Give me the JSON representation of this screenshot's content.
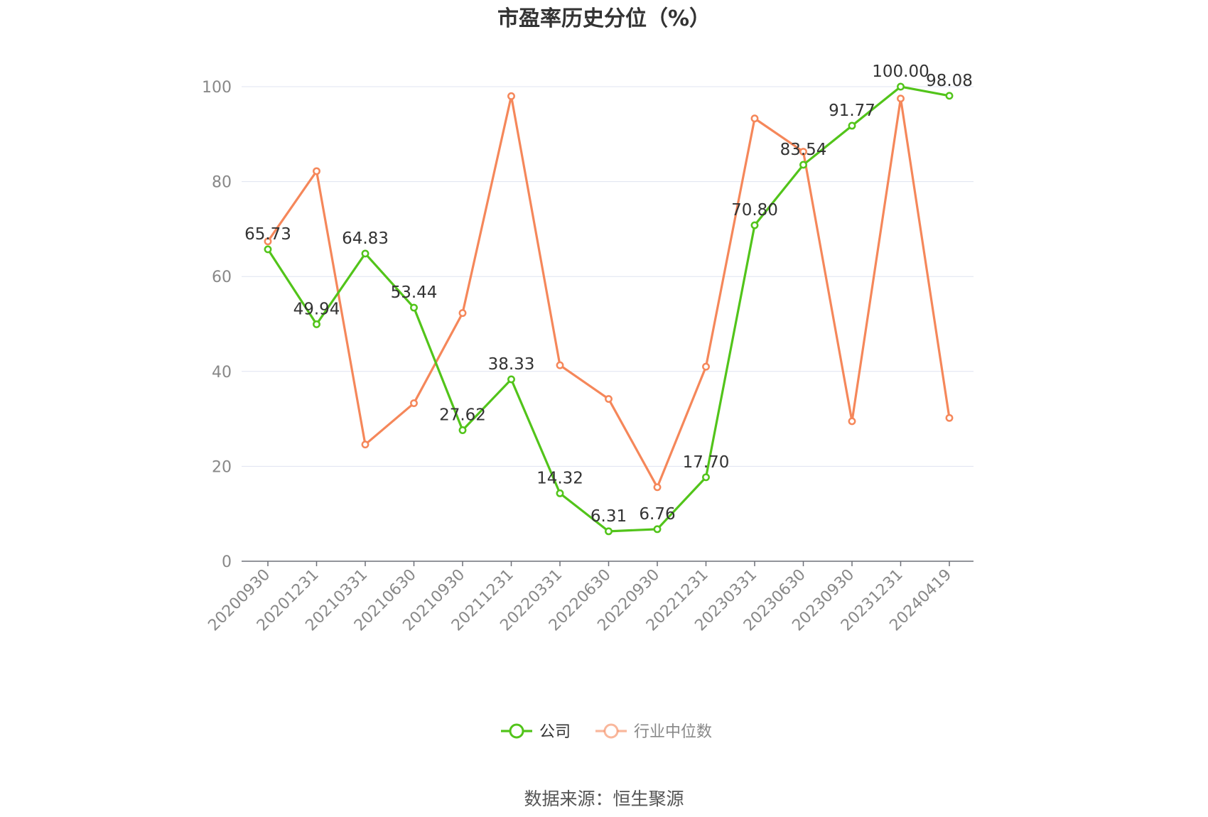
{
  "chart_data": {
    "type": "line",
    "title": "市盈率历史分位（%）",
    "categories": [
      "20200930",
      "20201231",
      "20210331",
      "20210630",
      "20210930",
      "20211231",
      "20220331",
      "20220630",
      "20220930",
      "20221231",
      "20230331",
      "20230630",
      "20230930",
      "20231231",
      "20240419"
    ],
    "ylim": [
      0,
      100
    ],
    "yticks": [
      0,
      20,
      40,
      60,
      80,
      100
    ],
    "grid": true,
    "legend_position": "bottom",
    "series": [
      {
        "name": "公司",
        "color": "#52c41a",
        "values": [
          65.73,
          49.94,
          64.83,
          53.44,
          27.62,
          38.33,
          14.32,
          6.31,
          6.76,
          17.7,
          70.8,
          83.54,
          91.77,
          100.0,
          98.08
        ],
        "labels": [
          "65.73",
          "49.94",
          "64.83",
          "53.44",
          "27.62",
          "38.33",
          "14.32",
          "6.31",
          "6.76",
          "17.70",
          "70.80",
          "83.54",
          "91.77",
          "100.00",
          "98.08"
        ]
      },
      {
        "name": "行业中位数",
        "color": "#f5875a",
        "values": [
          67.4,
          82.2,
          24.6,
          33.3,
          52.3,
          98.0,
          41.3,
          34.2,
          15.6,
          41.0,
          93.3,
          86.3,
          29.5,
          97.5,
          30.2
        ]
      }
    ]
  },
  "source_text": "数据来源：恒生聚源"
}
